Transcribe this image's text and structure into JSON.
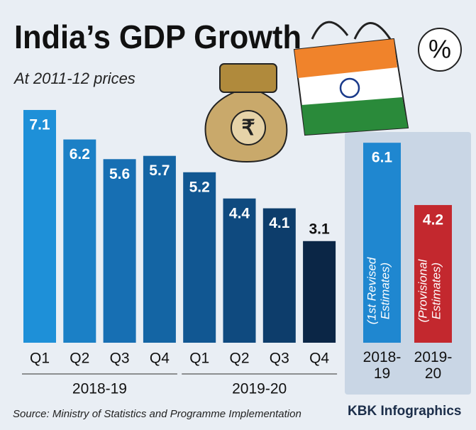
{
  "chart_data": [
    {
      "type": "bar",
      "title": "India’s GDP Growth",
      "subtitle": "At 2011-12 prices",
      "categories": [
        "Q1",
        "Q2",
        "Q3",
        "Q4",
        "Q1",
        "Q2",
        "Q3",
        "Q4"
      ],
      "groups": [
        {
          "name": "2018-19",
          "size": 4
        },
        {
          "name": "2019-20",
          "size": 4
        }
      ],
      "values": [
        7.1,
        6.2,
        5.6,
        5.7,
        5.2,
        4.4,
        4.1,
        3.1
      ],
      "colors": [
        "#1e90d8",
        "#1b80c6",
        "#176fb3",
        "#1465a4",
        "#115792",
        "#0f4a7f",
        "#0d3d6b",
        "#0b2646"
      ]
    },
    {
      "type": "bar",
      "categories": [
        "2018-19",
        "2019-20"
      ],
      "values": [
        6.1,
        4.2
      ],
      "notes": [
        "(1st Revised Estimates)",
        "(Provisional Estimates)"
      ],
      "colors": [
        "#1f87d0",
        "#c3282e"
      ]
    }
  ],
  "badge": "%",
  "source": "Source: Ministry of Statistics and Programme Implementation",
  "brand": "KBK Infographics"
}
